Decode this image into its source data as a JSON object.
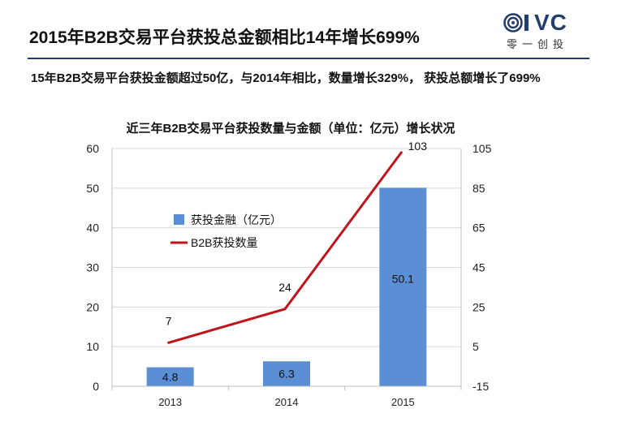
{
  "header": {
    "title": "2015年B2B交易平台获投总金额相比14年增长699%",
    "logo_text": "VC",
    "logo_sub": "零一创投"
  },
  "summary": "15年B2B交易平台获投金额超过50亿，与2014年相比，数量增长329%， 获投总额增长了699%",
  "chart_data": {
    "type": "bar",
    "title": "近三年B2B交易平台获投数量与金额（单位：亿元）增长状况",
    "categories": [
      "2013",
      "2014",
      "2015"
    ],
    "series": [
      {
        "name": "获投金融（亿元）",
        "type": "bar",
        "axis": "left",
        "values": [
          4.8,
          6.3,
          50.1
        ],
        "labels": [
          "4.8",
          "6.3",
          "50.1"
        ],
        "color": "#5b8fd5"
      },
      {
        "name": "B2B获投数量",
        "type": "line",
        "axis": "right",
        "values": [
          7,
          24,
          103
        ],
        "labels": [
          "7",
          "24",
          "103"
        ],
        "color": "#c0141b"
      }
    ],
    "y_left": {
      "min": 0,
      "max": 60,
      "ticks": [
        0,
        10,
        20,
        30,
        40,
        50,
        60
      ],
      "labels": [
        "0",
        "10",
        "20",
        "30",
        "40",
        "50",
        "60"
      ]
    },
    "y_right": {
      "min": -15,
      "max": 105,
      "ticks": [
        -15,
        5,
        25,
        45,
        65,
        85,
        105
      ],
      "labels": [
        "-15",
        "5",
        "25",
        "45",
        "65",
        "85",
        "105"
      ]
    },
    "grid": true,
    "legend": "center-left"
  }
}
